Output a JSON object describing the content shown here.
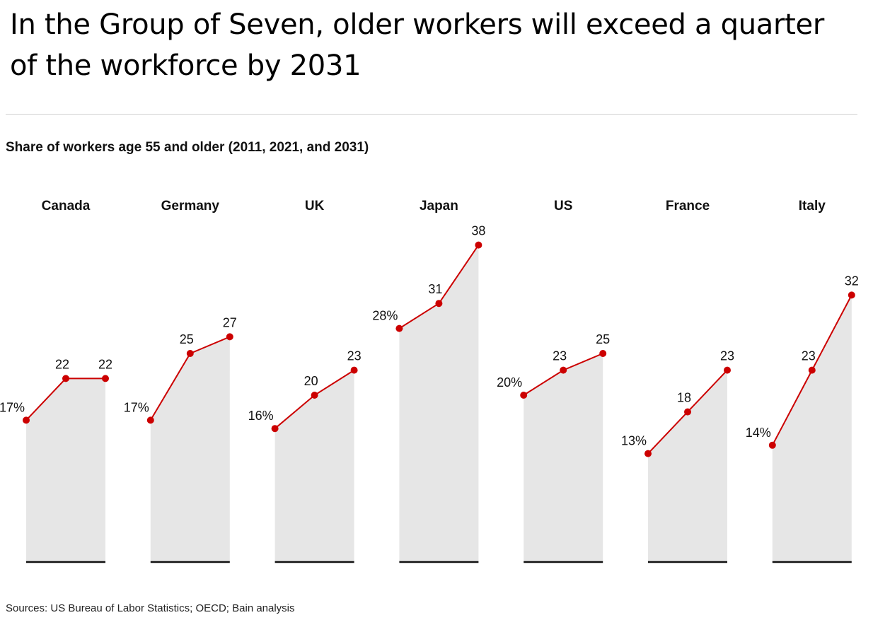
{
  "title": "In the Group of Seven, older workers will exceed a quarter of the workforce by 2031",
  "chart_data": {
    "type": "area",
    "subtitle": "Share of workers age 55 and older (2011, 2021, and 2031)",
    "x": [
      "2011",
      "2021",
      "2031"
    ],
    "unit": "%",
    "line_color": "#cc0000",
    "fill_color": "#e6e6e6",
    "panels": [
      {
        "name": "Canada",
        "values": [
          17,
          22,
          22
        ],
        "labels": [
          "17%",
          "22",
          "22"
        ]
      },
      {
        "name": "Germany",
        "values": [
          17,
          25,
          27
        ],
        "labels": [
          "17%",
          "25",
          "27"
        ]
      },
      {
        "name": "UK",
        "values": [
          16,
          20,
          23
        ],
        "labels": [
          "16%",
          "20",
          "23"
        ]
      },
      {
        "name": "Japan",
        "values": [
          28,
          31,
          38
        ],
        "labels": [
          "28%",
          "31",
          "38"
        ]
      },
      {
        "name": "US",
        "values": [
          20,
          23,
          25
        ],
        "labels": [
          "20%",
          "23",
          "25"
        ]
      },
      {
        "name": "France",
        "values": [
          13,
          18,
          23
        ],
        "labels": [
          "13%",
          "18",
          "23"
        ]
      },
      {
        "name": "Italy",
        "values": [
          14,
          23,
          32
        ],
        "labels": [
          "14%",
          "23",
          "32"
        ]
      }
    ]
  },
  "source": "Sources: US Bureau of Labor Statistics; OECD; Bain analysis"
}
